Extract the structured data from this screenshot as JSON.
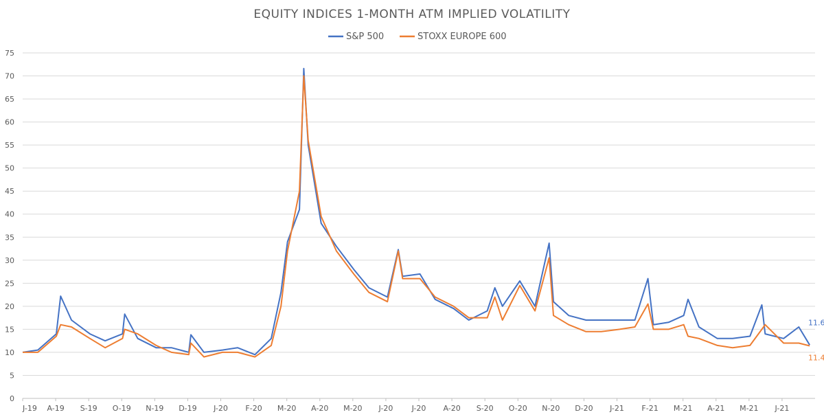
{
  "chart_data": {
    "type": "line",
    "title": "EQUITY INDICES 1-MONTH ATM IMPLIED VOLATILITY",
    "xlabel": "",
    "ylabel": "",
    "ylim": [
      0,
      75
    ],
    "yticks": [
      0,
      5,
      10,
      15,
      20,
      25,
      30,
      35,
      40,
      45,
      50,
      55,
      60,
      65,
      70,
      75
    ],
    "grid": true,
    "legend_position": "top-center",
    "x_tick_labels": [
      "J-19",
      "A-19",
      "S-19",
      "O-19",
      "N-19",
      "D-19",
      "J-20",
      "F-20",
      "M-20",
      "A-20",
      "M-20",
      "J-20",
      "J-20",
      "A-20",
      "S-20",
      "O-20",
      "N-20",
      "D-20",
      "J-21",
      "F-21",
      "M-21",
      "A-21",
      "M-21",
      "J-21"
    ],
    "x": [
      "2019-07-01",
      "2019-07-15",
      "2019-08-01",
      "2019-08-05",
      "2019-08-15",
      "2019-09-01",
      "2019-09-15",
      "2019-10-01",
      "2019-10-03",
      "2019-10-15",
      "2019-11-01",
      "2019-11-15",
      "2019-12-01",
      "2019-12-03",
      "2019-12-15",
      "2020-01-01",
      "2020-01-15",
      "2020-01-31",
      "2020-02-15",
      "2020-02-24",
      "2020-03-01",
      "2020-03-12",
      "2020-03-16",
      "2020-03-20",
      "2020-04-01",
      "2020-04-15",
      "2020-05-01",
      "2020-05-15",
      "2020-06-01",
      "2020-06-11",
      "2020-06-15",
      "2020-07-01",
      "2020-07-15",
      "2020-08-01",
      "2020-08-15",
      "2020-09-01",
      "2020-09-08",
      "2020-09-15",
      "2020-10-01",
      "2020-10-15",
      "2020-10-28",
      "2020-11-01",
      "2020-11-15",
      "2020-12-01",
      "2020-12-15",
      "2021-01-01",
      "2021-01-15",
      "2021-01-27",
      "2021-02-01",
      "2021-02-15",
      "2021-03-01",
      "2021-03-05",
      "2021-03-15",
      "2021-04-01",
      "2021-04-15",
      "2021-05-01",
      "2021-05-12",
      "2021-05-15",
      "2021-06-01",
      "2021-06-15",
      "2021-06-25"
    ],
    "series": [
      {
        "name": "S&P 500",
        "color": "#4472c4",
        "values": [
          10.0,
          10.5,
          14.0,
          22.2,
          17.0,
          14.0,
          12.5,
          14.0,
          18.3,
          13.0,
          11.0,
          11.0,
          10.0,
          13.8,
          10.0,
          10.5,
          11.0,
          9.5,
          13.0,
          23.0,
          34.0,
          41.0,
          71.6,
          55.0,
          38.0,
          33.0,
          28.0,
          24.0,
          22.0,
          32.3,
          26.5,
          27.0,
          21.5,
          19.5,
          17.0,
          19.0,
          24.0,
          20.0,
          25.5,
          20.0,
          33.7,
          21.0,
          18.0,
          17.0,
          17.0,
          17.0,
          17.0,
          26.0,
          16.0,
          16.5,
          18.0,
          21.5,
          15.5,
          13.0,
          13.0,
          13.5,
          20.3,
          14.0,
          13.0,
          15.5,
          11.6
        ]
      },
      {
        "name": "STOXX EUROPE 600",
        "color": "#ed7d31",
        "values": [
          10.0,
          10.0,
          13.5,
          16.0,
          15.5,
          13.0,
          11.0,
          13.0,
          15.0,
          14.0,
          11.5,
          10.0,
          9.5,
          12.0,
          9.0,
          10.0,
          10.0,
          9.0,
          11.5,
          20.0,
          32.0,
          45.0,
          70.0,
          56.0,
          39.5,
          32.0,
          27.0,
          23.0,
          21.0,
          32.0,
          26.0,
          26.0,
          22.0,
          20.0,
          17.5,
          17.5,
          22.0,
          17.0,
          24.5,
          19.0,
          30.5,
          18.0,
          16.0,
          14.5,
          14.5,
          15.0,
          15.5,
          20.5,
          15.0,
          15.0,
          16.0,
          13.5,
          13.0,
          11.5,
          11.0,
          11.5,
          15.0,
          16.0,
          12.0,
          12.0,
          11.4
        ]
      }
    ],
    "end_labels": {
      "sp500": "11.6",
      "stoxx600": "11.4"
    }
  }
}
